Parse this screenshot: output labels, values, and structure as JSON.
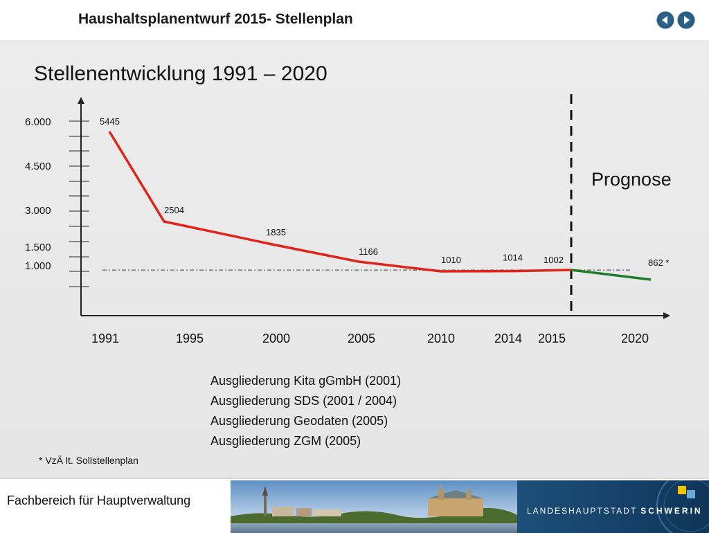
{
  "header": {
    "title": "Haushaltsplanentwurf 2015- Stellenplan"
  },
  "nav": {
    "prev_icon": "chevron-left-icon",
    "next_icon": "chevron-right-icon"
  },
  "colors": {
    "actual_line": "#e0241a",
    "forecast_line": "#1f7a2a",
    "nav": "#2c6288",
    "brand": "#1d4f7a"
  },
  "chart_data": {
    "type": "line",
    "title": "Stellenentwicklung 1991 – 2020",
    "x_categories": [
      "1991",
      "1995",
      "2000",
      "2005",
      "2010",
      "2014",
      "2015",
      "2020"
    ],
    "y_tick_labels": [
      "6.000",
      "4.500",
      "3.000",
      "1.500",
      "1.000"
    ],
    "series": [
      {
        "values": [
          5445,
          2504,
          1835,
          1166,
          1010,
          1014,
          1002,
          null
        ],
        "labels": [
          "5445",
          "2504",
          "1835",
          "1166",
          "1010",
          "1014",
          "1002",
          ""
        ]
      },
      {
        "values": [
          null,
          null,
          null,
          null,
          null,
          null,
          1002,
          862
        ],
        "labels": [
          "",
          "",
          "",
          "",
          "",
          "",
          "",
          "862 *"
        ]
      }
    ],
    "reference_line": 1000,
    "divider_after": "2015",
    "annotation": "Prognose"
  },
  "notes": [
    "Ausgliederung Kita gGmbH (2001)",
    "Ausgliederung SDS (2001 / 2004)",
    "Ausgliederung Geodaten (2005)",
    "Ausgliederung ZGM (2005)"
  ],
  "footnote": "* VzÄ lt. Sollstellenplan",
  "footer": {
    "department": "Fachbereich für Hauptverwaltung",
    "brand_prefix": "LANDESHAUPTSTADT",
    "brand_name": "SCHWERIN"
  }
}
